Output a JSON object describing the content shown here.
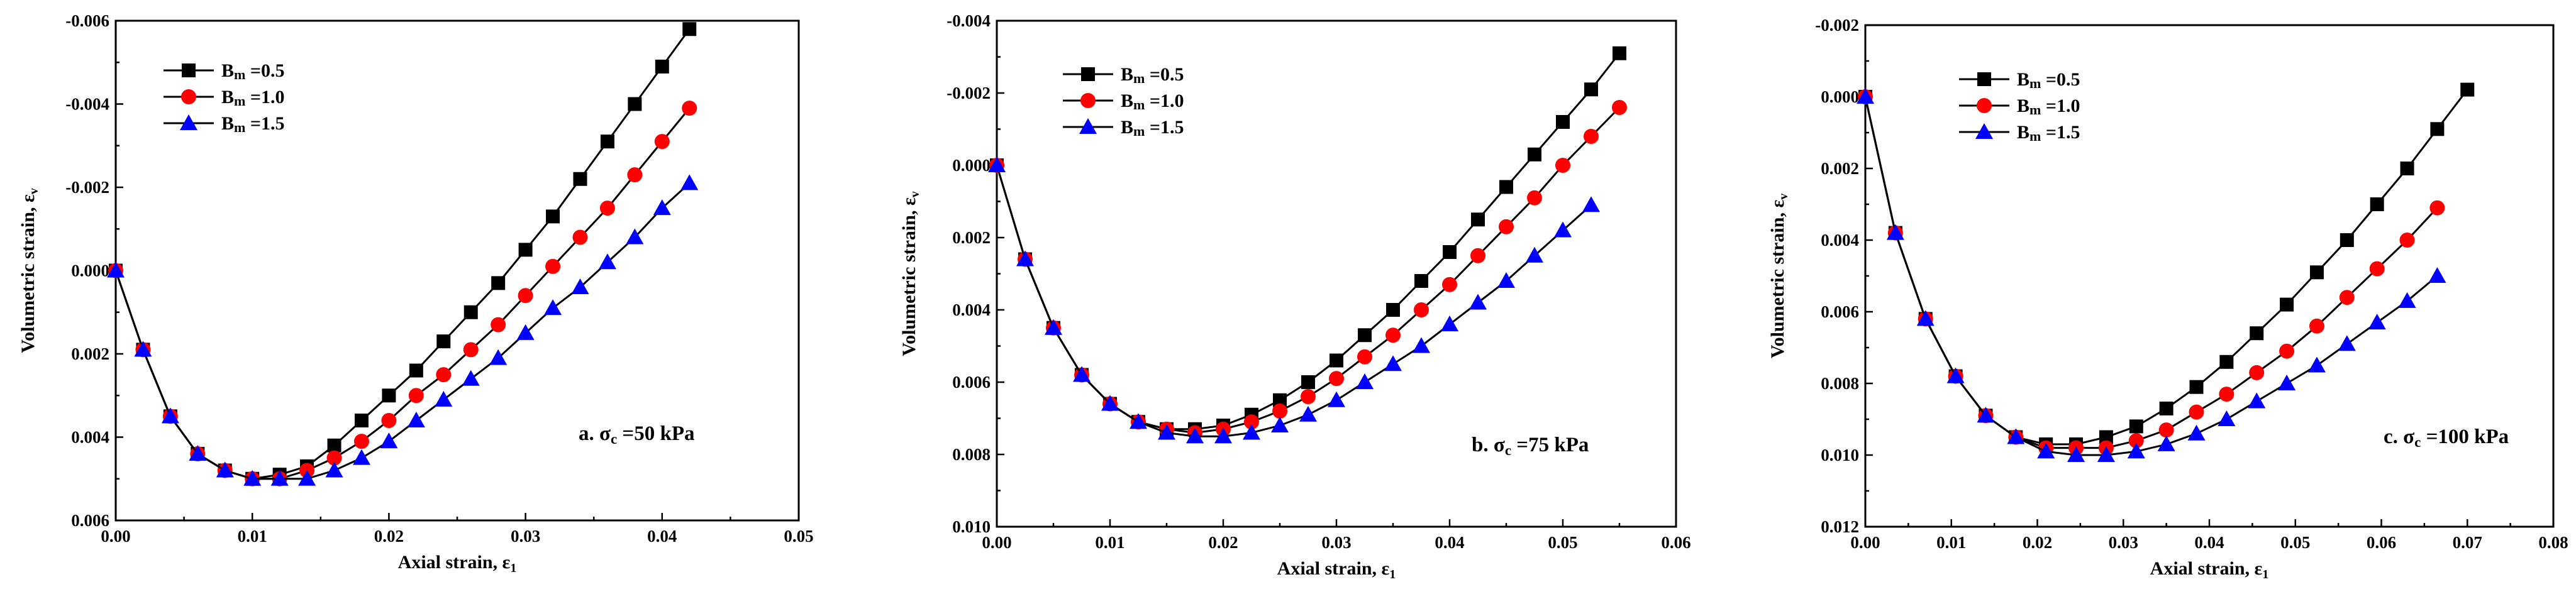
{
  "chart_data": [
    {
      "type": "line",
      "panel_label": "a. σc =50 kPa",
      "xlabel": "Axial strain, ε1",
      "ylabel": "Volumetric strain, εv",
      "xlim": [
        0,
        0.05
      ],
      "ylim": [
        0.006,
        -0.006
      ],
      "y_inverted": true,
      "xticks": [
        0.0,
        0.01,
        0.02,
        0.03,
        0.04,
        0.05
      ],
      "xtick_labels": [
        "0.00",
        "0.01",
        "0.02",
        "0.03",
        "0.04",
        "0.05"
      ],
      "yticks": [
        -0.006,
        -0.004,
        -0.002,
        0.0,
        0.002,
        0.004,
        0.006
      ],
      "ytick_labels": [
        "-0.006",
        "-0.004",
        "-0.002",
        "0.000",
        "0.002",
        "0.004",
        "0.006"
      ],
      "legend_position": "top-left",
      "series": [
        {
          "name": "Bm =0.5",
          "color": "#000000",
          "marker": "square",
          "x": [
            0.0,
            0.002,
            0.004,
            0.006,
            0.008,
            0.01,
            0.012,
            0.014,
            0.016,
            0.018,
            0.02,
            0.022,
            0.024,
            0.026,
            0.028,
            0.03,
            0.032,
            0.034,
            0.036,
            0.038,
            0.04,
            0.042
          ],
          "y": [
            0.0,
            0.0019,
            0.0035,
            0.0044,
            0.0048,
            0.005,
            0.0049,
            0.0047,
            0.0042,
            0.0036,
            0.003,
            0.0024,
            0.0017,
            0.001,
            0.0003,
            -0.0005,
            -0.0013,
            -0.0022,
            -0.0031,
            -0.004,
            -0.0049,
            -0.0058
          ]
        },
        {
          "name": "Bm =1.0",
          "color": "#ff0000",
          "marker": "circle",
          "x": [
            0.0,
            0.002,
            0.004,
            0.006,
            0.008,
            0.01,
            0.012,
            0.014,
            0.016,
            0.018,
            0.02,
            0.022,
            0.024,
            0.026,
            0.028,
            0.03,
            0.032,
            0.034,
            0.036,
            0.038,
            0.04,
            0.042
          ],
          "y": [
            0.0,
            0.0019,
            0.0035,
            0.0044,
            0.0048,
            0.005,
            0.005,
            0.0048,
            0.0045,
            0.0041,
            0.0036,
            0.003,
            0.0025,
            0.0019,
            0.0013,
            0.0006,
            -0.0001,
            -0.0008,
            -0.0015,
            -0.0023,
            -0.0031,
            -0.0039
          ]
        },
        {
          "name": "Bm =1.5",
          "color": "#0000ff",
          "marker": "triangle",
          "x": [
            0.0,
            0.002,
            0.004,
            0.006,
            0.008,
            0.01,
            0.012,
            0.014,
            0.016,
            0.018,
            0.02,
            0.022,
            0.024,
            0.026,
            0.028,
            0.03,
            0.032,
            0.034,
            0.036,
            0.038,
            0.04,
            0.042
          ],
          "y": [
            0.0,
            0.0019,
            0.0035,
            0.0044,
            0.0048,
            0.005,
            0.005,
            0.005,
            0.0048,
            0.0045,
            0.0041,
            0.0036,
            0.0031,
            0.0026,
            0.0021,
            0.0015,
            0.0009,
            0.0004,
            -0.0002,
            -0.0008,
            -0.0015,
            -0.0021
          ]
        }
      ]
    },
    {
      "type": "line",
      "panel_label": "b. σc =75 kPa",
      "xlabel": "Axial strain, ε1",
      "ylabel": "Volumetric strain, εv",
      "xlim": [
        0,
        0.06
      ],
      "ylim": [
        0.01,
        -0.004
      ],
      "y_inverted": true,
      "xticks": [
        0.0,
        0.01,
        0.02,
        0.03,
        0.04,
        0.05,
        0.06
      ],
      "xtick_labels": [
        "0.00",
        "0.01",
        "0.02",
        "0.03",
        "0.04",
        "0.05",
        "0.06"
      ],
      "yticks": [
        -0.004,
        -0.002,
        0.0,
        0.002,
        0.004,
        0.006,
        0.008,
        0.01
      ],
      "ytick_labels": [
        "-0.004",
        "-0.002",
        "0.000",
        "0.002",
        "0.004",
        "0.006",
        "0.008",
        "0.010"
      ],
      "legend_position": "top-left",
      "series": [
        {
          "name": "Bm =0.5",
          "color": "#000000",
          "marker": "square",
          "x": [
            0.0,
            0.0025,
            0.005,
            0.0075,
            0.01,
            0.0125,
            0.015,
            0.0175,
            0.02,
            0.0225,
            0.025,
            0.0275,
            0.03,
            0.0325,
            0.035,
            0.0375,
            0.04,
            0.0425,
            0.045,
            0.0475,
            0.05,
            0.0525,
            0.055
          ],
          "y": [
            0.0,
            0.0026,
            0.0045,
            0.0058,
            0.0066,
            0.0071,
            0.0073,
            0.0073,
            0.0072,
            0.0069,
            0.0065,
            0.006,
            0.0054,
            0.0047,
            0.004,
            0.0032,
            0.0024,
            0.0015,
            0.0006,
            -0.0003,
            -0.0012,
            -0.0021,
            -0.0031
          ]
        },
        {
          "name": "Bm =1.0",
          "color": "#ff0000",
          "marker": "circle",
          "x": [
            0.0,
            0.0025,
            0.005,
            0.0075,
            0.01,
            0.0125,
            0.015,
            0.0175,
            0.02,
            0.0225,
            0.025,
            0.0275,
            0.03,
            0.0325,
            0.035,
            0.0375,
            0.04,
            0.0425,
            0.045,
            0.0475,
            0.05,
            0.0525,
            0.055
          ],
          "y": [
            0.0,
            0.0026,
            0.0045,
            0.0058,
            0.0066,
            0.0071,
            0.0073,
            0.0074,
            0.0073,
            0.0071,
            0.0068,
            0.0064,
            0.0059,
            0.0053,
            0.0047,
            0.004,
            0.0033,
            0.0025,
            0.0017,
            0.0009,
            0.0,
            -0.0008,
            -0.0016
          ]
        },
        {
          "name": "Bm =1.5",
          "color": "#0000ff",
          "marker": "triangle",
          "x": [
            0.0,
            0.0025,
            0.005,
            0.0075,
            0.01,
            0.0125,
            0.015,
            0.0175,
            0.02,
            0.0225,
            0.025,
            0.0275,
            0.03,
            0.0325,
            0.035,
            0.0375,
            0.04,
            0.0425,
            0.045,
            0.0475,
            0.05,
            0.0525
          ],
          "y": [
            0.0,
            0.0026,
            0.0045,
            0.0058,
            0.0066,
            0.0071,
            0.0074,
            0.0075,
            0.0075,
            0.0074,
            0.0072,
            0.0069,
            0.0065,
            0.006,
            0.0055,
            0.005,
            0.0044,
            0.0038,
            0.0032,
            0.0025,
            0.0018,
            0.0011
          ]
        }
      ]
    },
    {
      "type": "line",
      "panel_label": "c. σc =100 kPa",
      "xlabel": "Axial strain, ε1",
      "ylabel": "Volumetric strain, εv",
      "xlim": [
        0,
        0.08
      ],
      "ylim": [
        0.012,
        -0.002
      ],
      "y_inverted": true,
      "xticks": [
        0.0,
        0.01,
        0.02,
        0.03,
        0.04,
        0.05,
        0.06,
        0.07,
        0.08
      ],
      "xtick_labels": [
        "0.00",
        "0.01",
        "0.02",
        "0.03",
        "0.04",
        "0.05",
        "0.06",
        "0.07",
        "0.08"
      ],
      "yticks": [
        -0.002,
        0.0,
        0.002,
        0.004,
        0.006,
        0.008,
        0.01,
        0.012
      ],
      "ytick_labels": [
        "-0.002",
        "0.000",
        "0.002",
        "0.004",
        "0.006",
        "0.008",
        "0.010",
        "0.012"
      ],
      "legend_position": "top-left",
      "series": [
        {
          "name": "Bm =0.5",
          "color": "#000000",
          "marker": "square",
          "x": [
            0.0,
            0.0035,
            0.007,
            0.0105,
            0.014,
            0.0175,
            0.021,
            0.0245,
            0.028,
            0.0315,
            0.035,
            0.0385,
            0.042,
            0.0455,
            0.049,
            0.0525,
            0.056,
            0.0595,
            0.063,
            0.0665,
            0.07
          ],
          "y": [
            0.0,
            0.0038,
            0.0062,
            0.0078,
            0.0089,
            0.0095,
            0.0097,
            0.0097,
            0.0095,
            0.0092,
            0.0087,
            0.0081,
            0.0074,
            0.0066,
            0.0058,
            0.0049,
            0.004,
            0.003,
            0.002,
            0.0009,
            -0.0002
          ]
        },
        {
          "name": "Bm =1.0",
          "color": "#ff0000",
          "marker": "circle",
          "x": [
            0.0,
            0.0035,
            0.007,
            0.0105,
            0.014,
            0.0175,
            0.021,
            0.0245,
            0.028,
            0.0315,
            0.035,
            0.0385,
            0.042,
            0.0455,
            0.049,
            0.0525,
            0.056,
            0.0595,
            0.063,
            0.0665
          ],
          "y": [
            0.0,
            0.0038,
            0.0062,
            0.0078,
            0.0089,
            0.0095,
            0.0098,
            0.0098,
            0.0098,
            0.0096,
            0.0093,
            0.0088,
            0.0083,
            0.0077,
            0.0071,
            0.0064,
            0.0056,
            0.0048,
            0.004,
            0.0031
          ]
        },
        {
          "name": "Bm =1.5",
          "color": "#0000ff",
          "marker": "triangle",
          "x": [
            0.0,
            0.0035,
            0.007,
            0.0105,
            0.014,
            0.0175,
            0.021,
            0.0245,
            0.028,
            0.0315,
            0.035,
            0.0385,
            0.042,
            0.0455,
            0.049,
            0.0525,
            0.056,
            0.0595,
            0.063,
            0.0665
          ],
          "y": [
            0.0,
            0.0038,
            0.0062,
            0.0078,
            0.0089,
            0.0095,
            0.0099,
            0.01,
            0.01,
            0.0099,
            0.0097,
            0.0094,
            0.009,
            0.0085,
            0.008,
            0.0075,
            0.0069,
            0.0063,
            0.0057,
            0.005
          ]
        }
      ]
    }
  ]
}
